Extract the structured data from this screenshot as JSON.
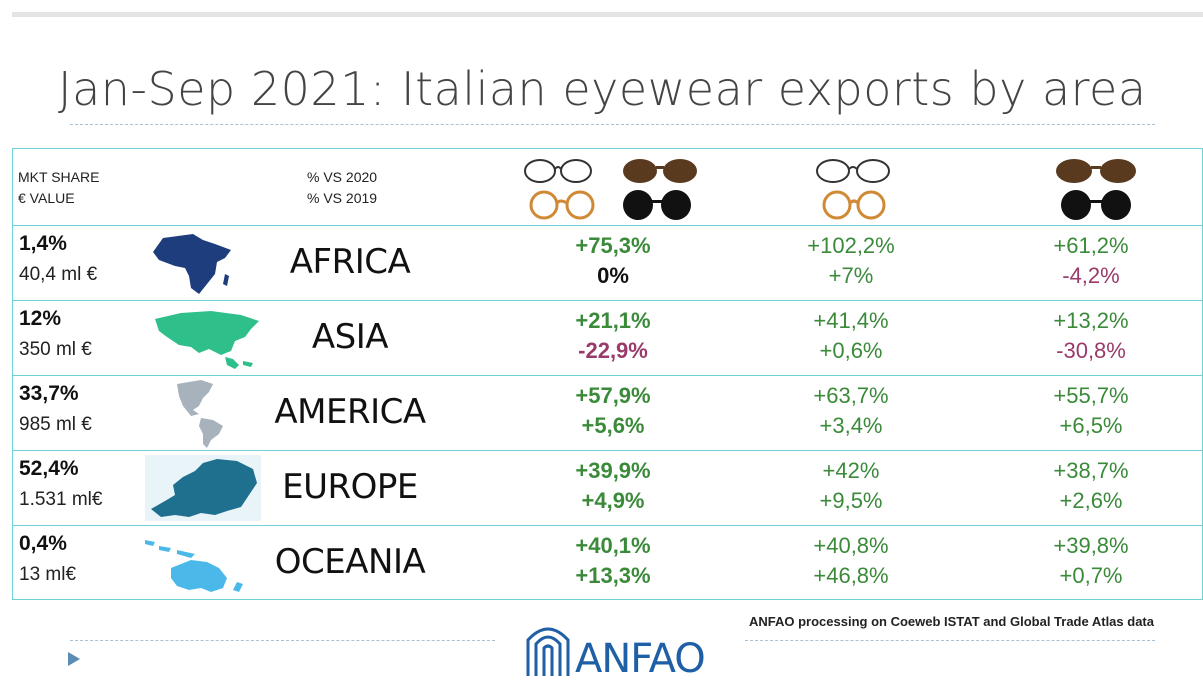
{
  "title": "Jan-Sep 2021:  Italian eyewear exports by area",
  "header": {
    "mkt_share": "MKT SHARE",
    "euro_value": "€ VALUE",
    "vs2020": "% VS 2020",
    "vs2019": "% VS 2019"
  },
  "rows": [
    {
      "share": "1,4%",
      "value": "40,4 ml €",
      "region": "AFRICA",
      "total_2020": "+75,3%",
      "total_2019": "0%",
      "frames_2020": "+102,2%",
      "frames_2019": "+7%",
      "sun_2020": "+61,2%",
      "sun_2019": "-4,2%"
    },
    {
      "share": "12%",
      "value": "350 ml €",
      "region": "ASIA",
      "total_2020": "+21,1%",
      "total_2019": "-22,9%",
      "frames_2020": "+41,4%",
      "frames_2019": "+0,6%",
      "sun_2020": "+13,2%",
      "sun_2019": "-30,8%"
    },
    {
      "share": "33,7%",
      "value": "985 ml €",
      "region": "AMERICA",
      "total_2020": "+57,9%",
      "total_2019": "+5,6%",
      "frames_2020": "+63,7%",
      "frames_2019": "+3,4%",
      "sun_2020": "+55,7%",
      "sun_2019": "+6,5%"
    },
    {
      "share": "52,4%",
      "value": "1.531 ml€",
      "region": "EUROPE",
      "total_2020": "+39,9%",
      "total_2019": "+4,9%",
      "frames_2020": "+42%",
      "frames_2019": "+9,5%",
      "sun_2020": "+38,7%",
      "sun_2019": "+2,6%"
    },
    {
      "share": "0,4%",
      "value": "13 ml€",
      "region": "OCEANIA",
      "total_2020": "+40,1%",
      "total_2019": "+13,3%",
      "frames_2020": "+40,8%",
      "frames_2019": "+46,8%",
      "sun_2020": "+39,8%",
      "sun_2019": "+0,7%"
    }
  ],
  "source": "ANFAO processing on Coeweb ISTAT and Global Trade Atlas data",
  "logo_text": "ANFAO",
  "colors": {
    "positive": "#3a8a3a",
    "negative": "#9a3a6a",
    "neutral": "#111111",
    "border": "#6fd1d8",
    "africa": "#1d3d7c",
    "asia": "#2fbf8a",
    "america": "#a7b2bd",
    "europe": "#1f6f8f",
    "oceania": "#4bb8ea",
    "logo": "#1f5fa6"
  },
  "icons": [
    "eyeglasses-icon",
    "sunglasses-icon",
    "play-icon",
    "africa-map-icon",
    "asia-map-icon",
    "america-map-icon",
    "europe-map-icon",
    "oceania-map-icon",
    "anfao-logo-icon"
  ]
}
